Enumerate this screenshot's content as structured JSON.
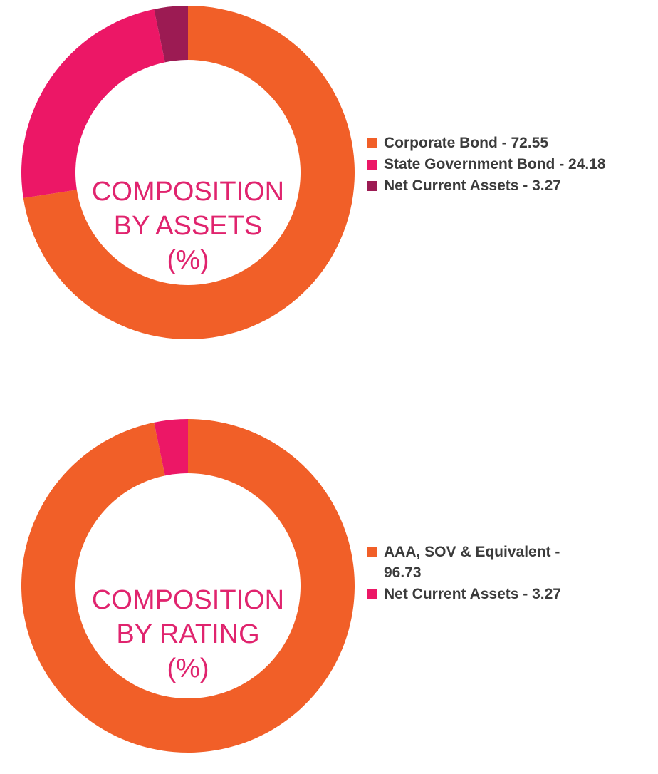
{
  "colors": {
    "orange": "#f15f28",
    "pink": "#ec1766",
    "maroon": "#9c1b53",
    "title": "#e0246e",
    "legend_text": "#3b3b3b"
  },
  "chart_data": [
    {
      "type": "pie",
      "donut": true,
      "center_title_lines": [
        "COMPOSITION",
        "BY ASSETS",
        "(%)"
      ],
      "legend_placement": "right",
      "slices": [
        {
          "label": "Corporate Bond - 72.55",
          "name": "Corporate Bond",
          "value": 72.55,
          "color": "#f15f28"
        },
        {
          "label": "State Government Bond - 24.18",
          "name": "State Government Bond",
          "value": 24.18,
          "color": "#ec1766"
        },
        {
          "label": "Net Current Assets - 3.27",
          "name": "Net Current Assets",
          "value": 3.27,
          "color": "#9c1b53"
        }
      ]
    },
    {
      "type": "pie",
      "donut": true,
      "center_title_lines": [
        "COMPOSITION",
        "BY RATING",
        "(%)"
      ],
      "legend_placement": "right",
      "slices": [
        {
          "label": "AAA, SOV & Equivalent - 96.73",
          "name": "AAA, SOV & Equivalent",
          "value": 96.73,
          "color": "#f15f28"
        },
        {
          "label": "Net Current Assets - 3.27",
          "name": "Net Current Assets",
          "value": 3.27,
          "color": "#ec1766"
        }
      ]
    }
  ]
}
